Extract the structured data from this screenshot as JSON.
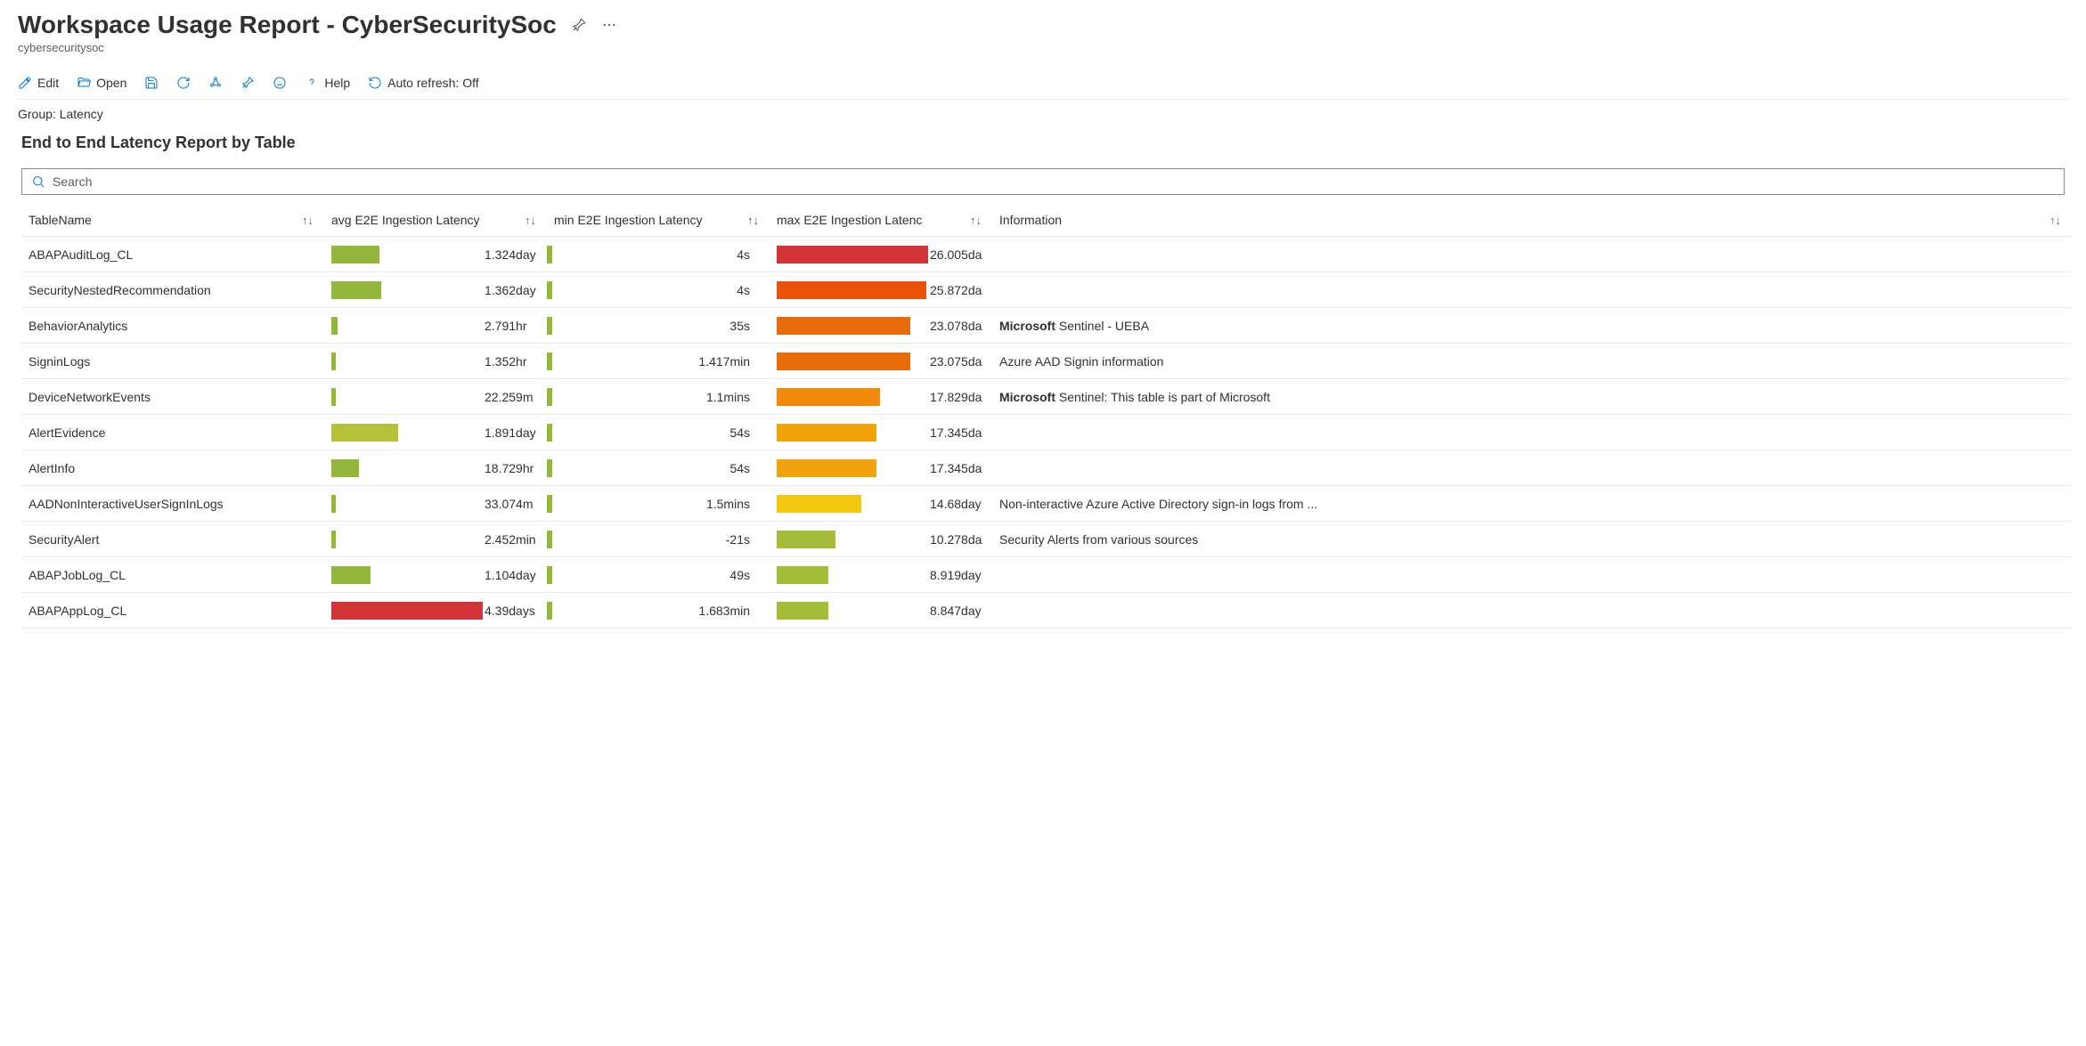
{
  "header": {
    "title": "Workspace Usage Report - CyberSecuritySoc",
    "subtitle": "cybersecuritysoc"
  },
  "toolbar": {
    "edit": "Edit",
    "open": "Open",
    "help": "Help",
    "auto_refresh": "Auto refresh: Off"
  },
  "group_label": "Group: Latency",
  "section_title": "End to End Latency Report by Table",
  "search": {
    "placeholder": "Search"
  },
  "columns": {
    "c0": "TableName",
    "c1": "avg E2E Ingestion Latency",
    "c2": "min E2E Ingestion Latency",
    "c3": "max E2E Ingestion Latenc",
    "c4": "Information"
  },
  "colors": {
    "green": "#92b73a",
    "yellowgreen": "#b4c23a",
    "olive": "#a3bd3a",
    "yellow": "#f2c811",
    "gold": "#f0a30a",
    "orange": "#f28a0a",
    "darkorange": "#e86c0a",
    "orangered": "#e8510a",
    "red": "#d13438"
  },
  "rows": [
    {
      "name": "ABAPAuditLog_CL",
      "avg_val": "1.324day",
      "avg_w": 32,
      "avg_c": "green",
      "min_val": "4s",
      "min_c": "green",
      "max_val": "26.005da",
      "max_w": 100,
      "max_c": "red",
      "info": ""
    },
    {
      "name": "SecurityNestedRecommendation",
      "avg_val": "1.362day",
      "avg_w": 33,
      "avg_c": "green",
      "min_val": "4s",
      "min_c": "green",
      "max_val": "25.872da",
      "max_w": 99,
      "max_c": "orangered",
      "info": ""
    },
    {
      "name": "BehaviorAnalytics",
      "avg_val": "2.791hr",
      "avg_w": 4,
      "avg_c": "green",
      "min_val": "35s",
      "min_c": "green",
      "max_val": "23.078da",
      "max_w": 88,
      "max_c": "darkorange",
      "info": "Microsoft Sentinel - UEBA",
      "info_bold": "Microsoft"
    },
    {
      "name": "SigninLogs",
      "avg_val": "1.352hr",
      "avg_w": 3,
      "avg_c": "green",
      "min_val": "1.417min",
      "min_c": "green",
      "max_val": "23.075da",
      "max_w": 88,
      "max_c": "darkorange",
      "info": "Azure AAD Signin information"
    },
    {
      "name": "DeviceNetworkEvents",
      "avg_val": "22.259m",
      "avg_w": 3,
      "avg_c": "green",
      "min_val": "1.1mins",
      "min_c": "green",
      "max_val": "17.829da",
      "max_w": 68,
      "max_c": "orange",
      "info": "Microsoft Sentinel: This table is part of Microsoft",
      "info_bold": "Microsoft"
    },
    {
      "name": "AlertEvidence",
      "avg_val": "1.891day",
      "avg_w": 44,
      "avg_c": "yellowgreen",
      "min_val": "54s",
      "min_c": "green",
      "max_val": "17.345da",
      "max_w": 66,
      "max_c": "gold",
      "info": ""
    },
    {
      "name": "AlertInfo",
      "avg_val": "18.729hr",
      "avg_w": 18,
      "avg_c": "green",
      "min_val": "54s",
      "min_c": "green",
      "max_val": "17.345da",
      "max_w": 66,
      "max_c": "gold",
      "info": ""
    },
    {
      "name": "AADNonInteractiveUserSignInLogs",
      "avg_val": "33.074m",
      "avg_w": 3,
      "avg_c": "green",
      "min_val": "1.5mins",
      "min_c": "green",
      "max_val": "14.68day",
      "max_w": 56,
      "max_c": "yellow",
      "info": "Non-interactive Azure Active Directory sign-in logs from ..."
    },
    {
      "name": "SecurityAlert",
      "avg_val": "2.452min",
      "avg_w": 3,
      "avg_c": "green",
      "min_val": "-21s",
      "min_c": "green",
      "max_val": "10.278da",
      "max_w": 39,
      "max_c": "olive",
      "info": "Security Alerts from various sources"
    },
    {
      "name": "ABAPJobLog_CL",
      "avg_val": "1.104day",
      "avg_w": 26,
      "avg_c": "green",
      "min_val": "49s",
      "min_c": "green",
      "max_val": "8.919day",
      "max_w": 34,
      "max_c": "olive",
      "info": ""
    },
    {
      "name": "ABAPAppLog_CL",
      "avg_val": "4.39days",
      "avg_w": 100,
      "avg_c": "red",
      "min_val": "1.683min",
      "min_c": "green",
      "max_val": "8.847day",
      "max_w": 34,
      "max_c": "olive",
      "info": ""
    }
  ]
}
